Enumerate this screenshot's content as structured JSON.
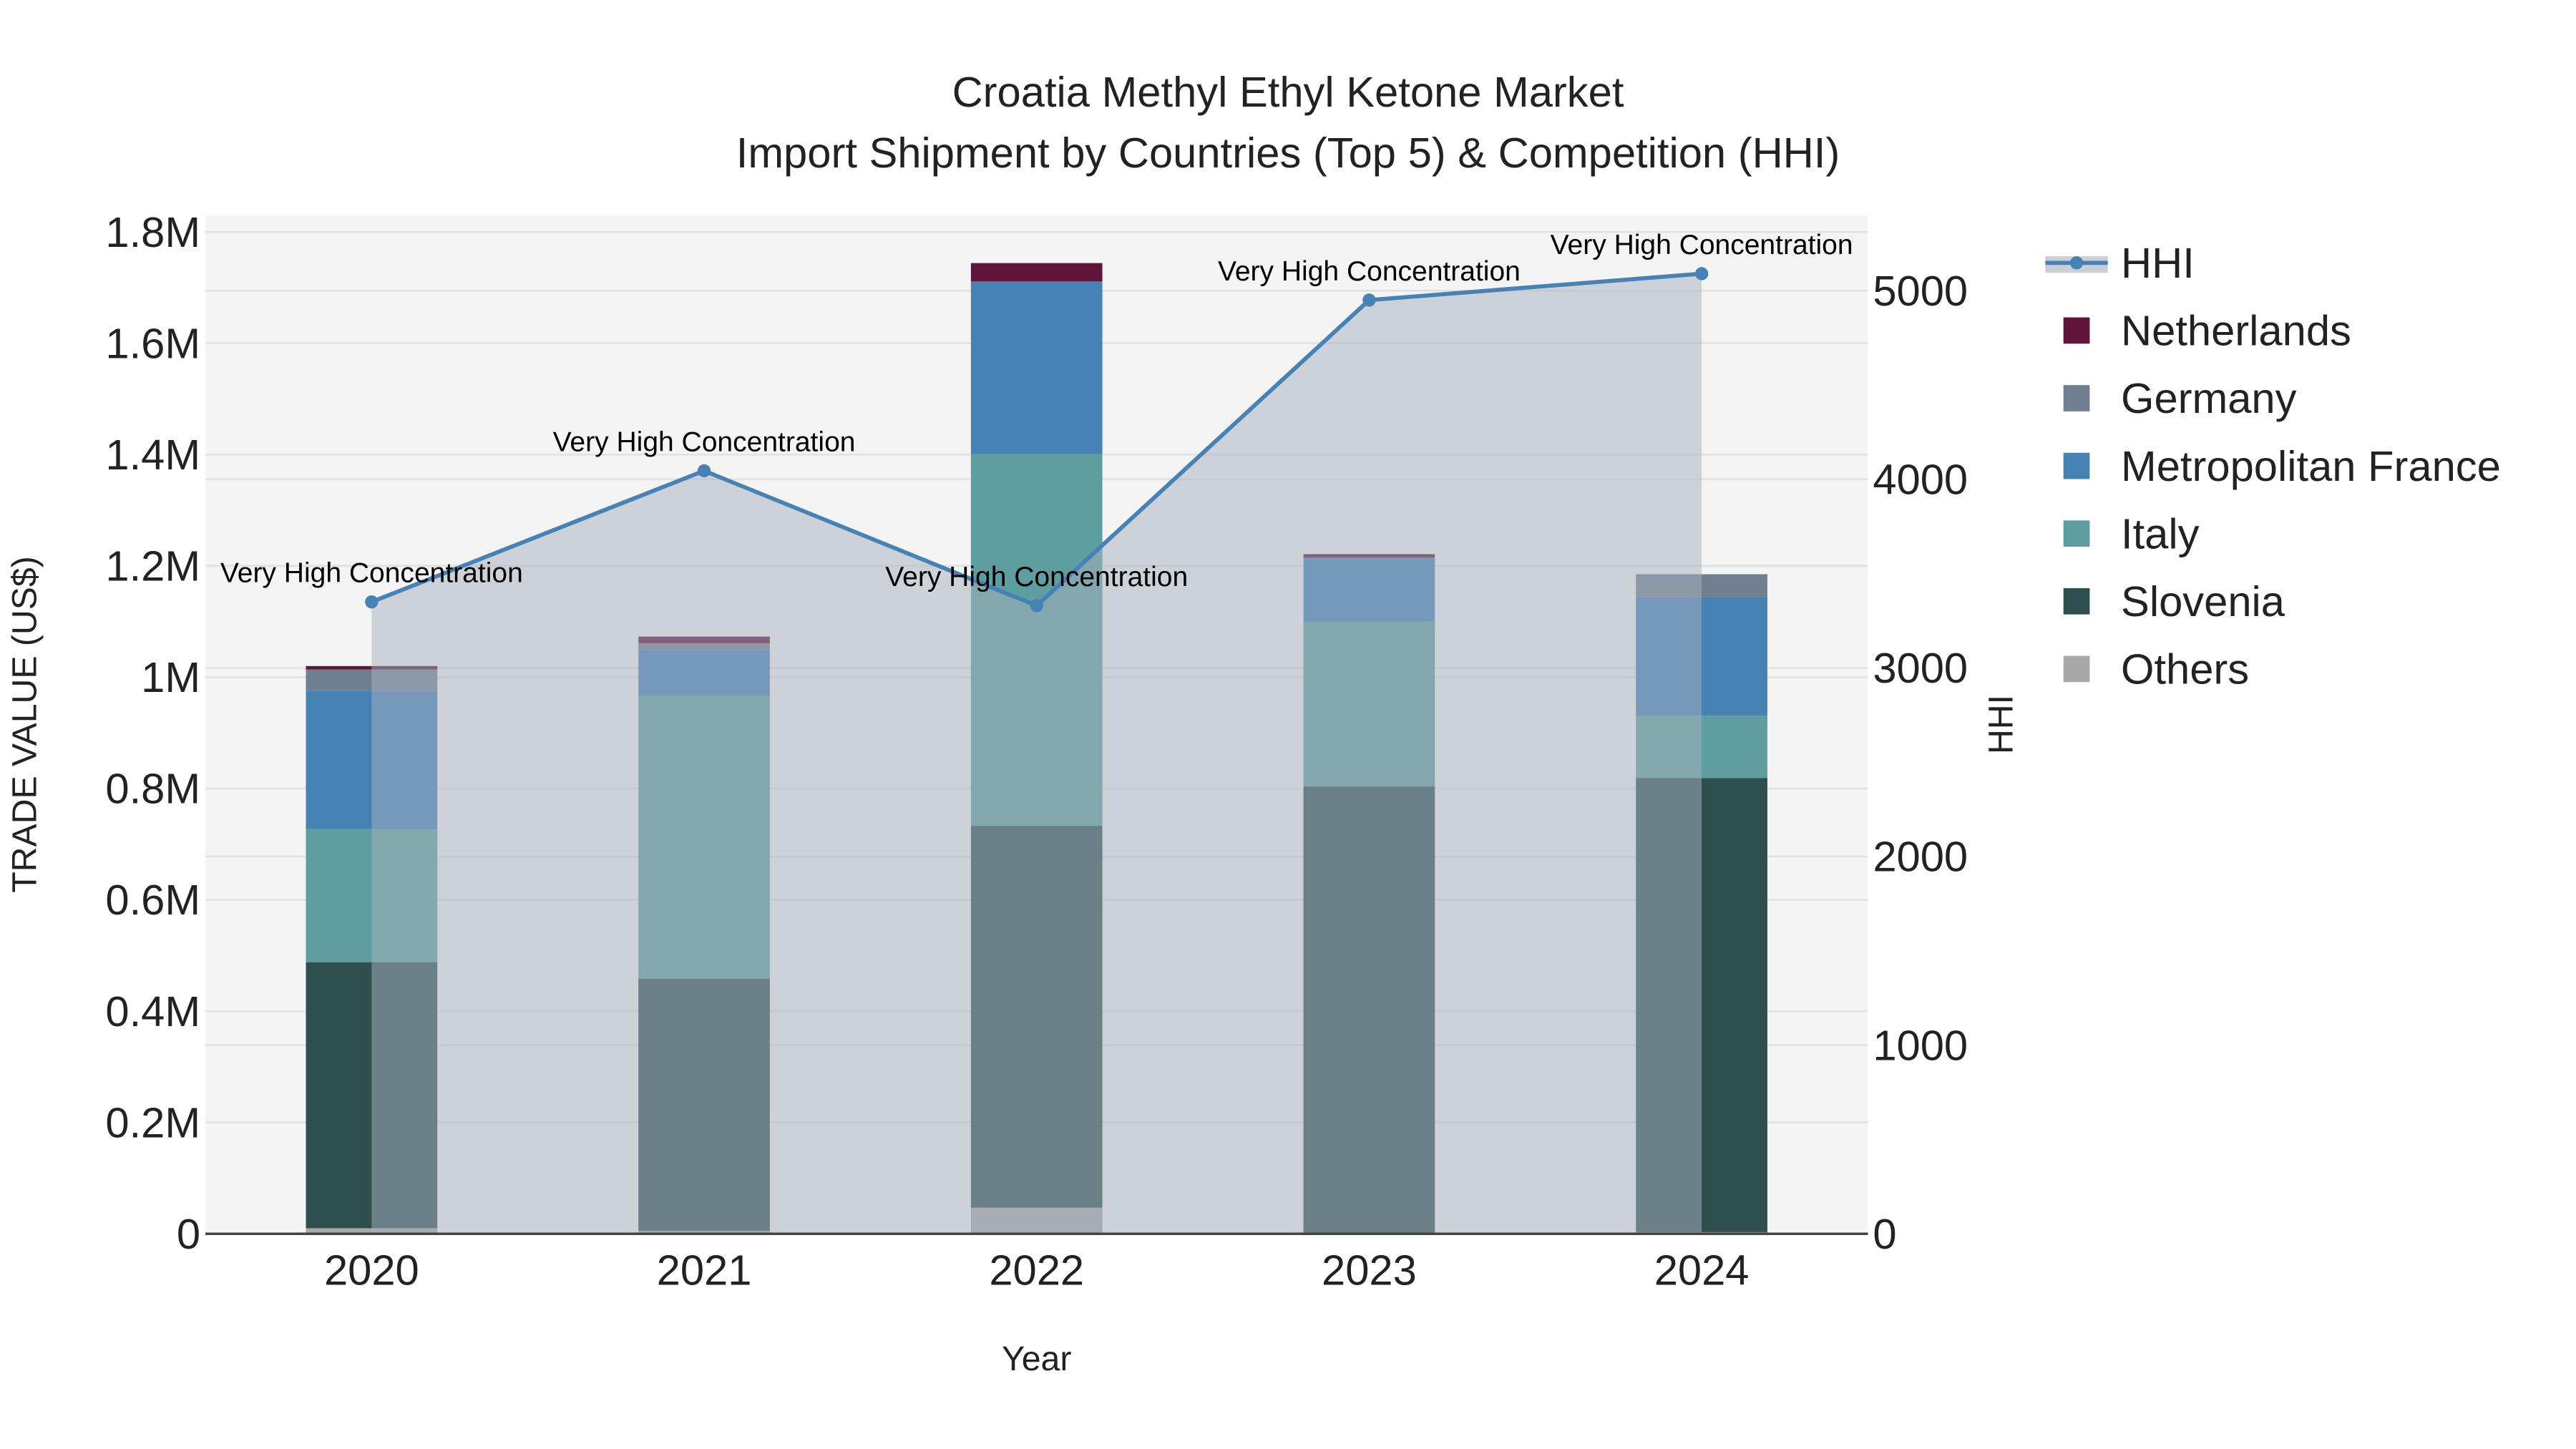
{
  "chart_data": {
    "type": "bar",
    "title": "Croatia Methyl Ethyl Ketone Market",
    "subtitle": "Import Shipment by Countries (Top 5) & Competition (HHI)",
    "xlabel": "Year",
    "ylabel": "TRADE VALUE (US$)",
    "y2label": "HHI",
    "categories": [
      "2020",
      "2021",
      "2022",
      "2023",
      "2024"
    ],
    "ylim": [
      0,
      1830000
    ],
    "y2lim": [
      0,
      5400
    ],
    "yticks": [
      {
        "v": 0,
        "label": "0"
      },
      {
        "v": 200000,
        "label": "0.2M"
      },
      {
        "v": 400000,
        "label": "0.4M"
      },
      {
        "v": 600000,
        "label": "0.6M"
      },
      {
        "v": 800000,
        "label": "0.8M"
      },
      {
        "v": 1000000,
        "label": "1M"
      },
      {
        "v": 1200000,
        "label": "1.2M"
      },
      {
        "v": 1400000,
        "label": "1.4M"
      },
      {
        "v": 1600000,
        "label": "1.6M"
      },
      {
        "v": 1800000,
        "label": "1.8M"
      }
    ],
    "y2ticks": [
      {
        "v": 0,
        "label": "0"
      },
      {
        "v": 1000,
        "label": "1000"
      },
      {
        "v": 2000,
        "label": "2000"
      },
      {
        "v": 3000,
        "label": "3000"
      },
      {
        "v": 4000,
        "label": "4000"
      },
      {
        "v": 5000,
        "label": "5000"
      }
    ],
    "stacked": true,
    "series": [
      {
        "name": "Others",
        "color": "#a9a9a9",
        "values": [
          10000,
          5000,
          47000,
          1000,
          3000
        ]
      },
      {
        "name": "Slovenia",
        "color": "#2f4f4f",
        "values": [
          478000,
          453000,
          686000,
          803000,
          816000
        ]
      },
      {
        "name": "Italy",
        "color": "#5f9ea0",
        "values": [
          239000,
          509000,
          668000,
          296000,
          112000
        ]
      },
      {
        "name": "Metropolitan France",
        "color": "#4682b4",
        "values": [
          248000,
          82000,
          310000,
          115000,
          213000
        ]
      },
      {
        "name": "Germany",
        "color": "#708090",
        "values": [
          39000,
          12000,
          0,
          0,
          41000
        ]
      },
      {
        "name": "Netherlands",
        "color": "#5f1439",
        "values": [
          6000,
          12000,
          33000,
          6000,
          0
        ]
      }
    ],
    "hhi": {
      "name": "HHI",
      "color": "#4682b4",
      "values": [
        3350,
        4045,
        3330,
        4950,
        5090
      ],
      "annotations": [
        "Very High Concentration",
        "Very High Concentration",
        "Very High Concentration",
        "Very High Concentration",
        "Very High Concentration"
      ]
    },
    "legend_order": [
      "HHI",
      "Netherlands",
      "Germany",
      "Metropolitan France",
      "Italy",
      "Slovenia",
      "Others"
    ],
    "legend_placement": "right",
    "grid": true
  }
}
